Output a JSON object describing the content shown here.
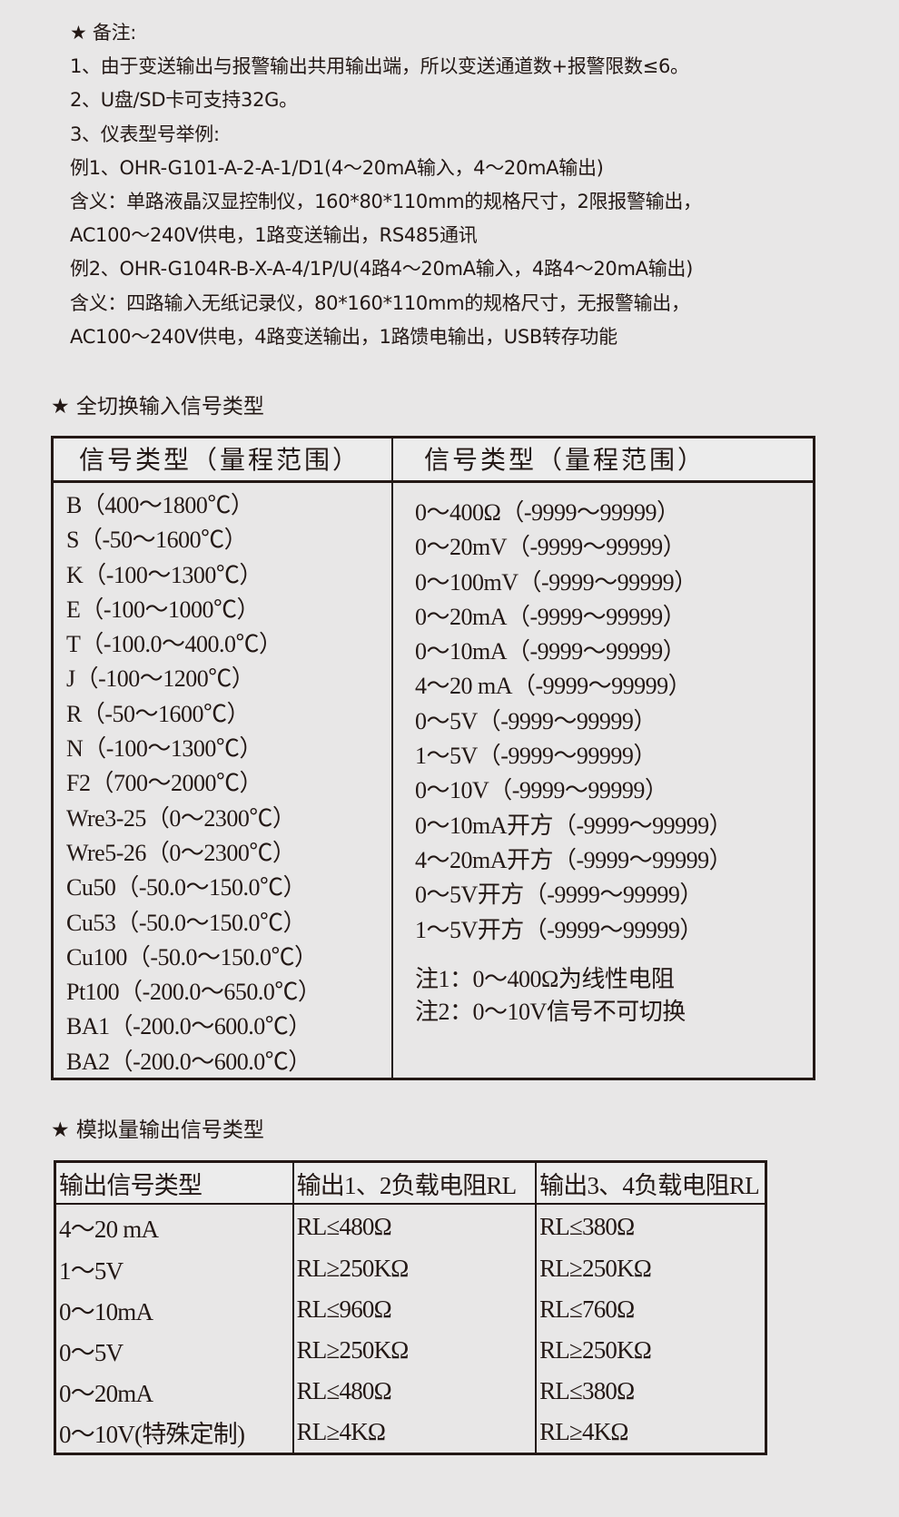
{
  "notes": {
    "title": "★ 备注:",
    "lines": [
      "1、由于变送输出与报警输出共用输出端，所以变送通道数+报警限数≤6。",
      "2、U盘/SD卡可支持32G。",
      "3、仪表型号举例:",
      "例1、OHR-G101-A-2-A-1/D1(4～20mA输入，4～20mA输出)",
      "含义：单路液晶汉显控制仪，160*80*110mm的规格尺寸，2限报警输出，",
      "AC100～240V供电，1路变送输出，RS485通讯",
      "例2、OHR-G104R-B-X-A-4/1P/U(4路4～20mA输入，4路4～20mA输出)",
      "含义：四路输入无纸记录仪，80*160*110mm的规格尺寸，无报警输出，",
      "AC100～240V供电，4路变送输出，1路馈电输出，USB转存功能"
    ]
  },
  "input_section": {
    "title": "★ 全切换输入信号类型",
    "headers": [
      "信号类型（量程范围）",
      "信号类型（量程范围）"
    ],
    "left": [
      "B（400～1800℃）",
      "S（-50～1600℃）",
      "K（-100～1300℃）",
      "E（-100～1000℃）",
      "T（-100.0～400.0℃）",
      "J（-100～1200℃）",
      "R（-50～1600℃）",
      "N（-100～1300℃）",
      "F2（700～2000℃）",
      "Wre3-25（0～2300℃）",
      "Wre5-26（0～2300℃）",
      "Cu50（-50.0～150.0℃）",
      "Cu53（-50.0～150.0℃）",
      "Cu100（-50.0～150.0℃）",
      "Pt100（-200.0～650.0℃）",
      "BA1（-200.0～600.0℃）",
      "BA2（-200.0～600.0℃）"
    ],
    "right": [
      "0～400Ω（-9999～99999）",
      "0～20mV（-9999～99999）",
      "0～100mV（-9999～99999）",
      "0～20mA（-9999～99999）",
      "0～10mA（-9999～99999）",
      "4～20 mA（-9999～99999）",
      "0～5V（-9999～99999）",
      "1～5V（-9999～99999）",
      "0～10V（-9999～99999）",
      "0～10mA开方（-9999～99999）",
      "4～20mA开方（-9999～99999）",
      "0～5V开方（-9999～99999）",
      "1～5V开方（-9999～99999）"
    ],
    "footnotes": [
      "注1：0～400Ω为线性电阻",
      "注2：0～10V信号不可切换"
    ]
  },
  "output_section": {
    "title": "★ 模拟量输出信号类型",
    "headers": [
      "输出信号类型",
      "输出1、2负载电阻RL",
      "输出3、4负载电阻RL"
    ],
    "rows": [
      [
        "4～20 mA",
        "RL≤480Ω",
        "RL≤380Ω"
      ],
      [
        "1～5V",
        "RL≥250KΩ",
        "RL≥250KΩ"
      ],
      [
        "0～10mA",
        "RL≤960Ω",
        "RL≤760Ω"
      ],
      [
        "0～5V",
        "RL≥250KΩ",
        "RL≥250KΩ"
      ],
      [
        "0～20mA",
        "RL≤480Ω",
        "RL≤380Ω"
      ],
      [
        "0～10V(特殊定制)",
        "RL≥4KΩ",
        "RL≥4KΩ"
      ]
    ]
  }
}
